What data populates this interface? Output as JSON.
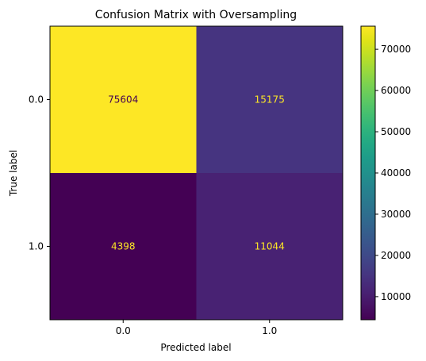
{
  "chart_data": {
    "type": "heatmap",
    "title": "Confusion Matrix with Oversampling",
    "xlabel": "Predicted label",
    "ylabel": "True label",
    "x_categories": [
      "0.0",
      "1.0"
    ],
    "y_categories": [
      "0.0",
      "1.0"
    ],
    "matrix": [
      [
        75604,
        15175
      ],
      [
        4398,
        11044
      ]
    ],
    "colormap": "viridis",
    "colorbar": {
      "range": [
        4398,
        75604
      ],
      "ticks": [
        10000,
        20000,
        30000,
        40000,
        50000,
        60000,
        70000
      ]
    },
    "text_colors": {
      "on_light": "#440154",
      "on_dark": "#fde725"
    }
  }
}
